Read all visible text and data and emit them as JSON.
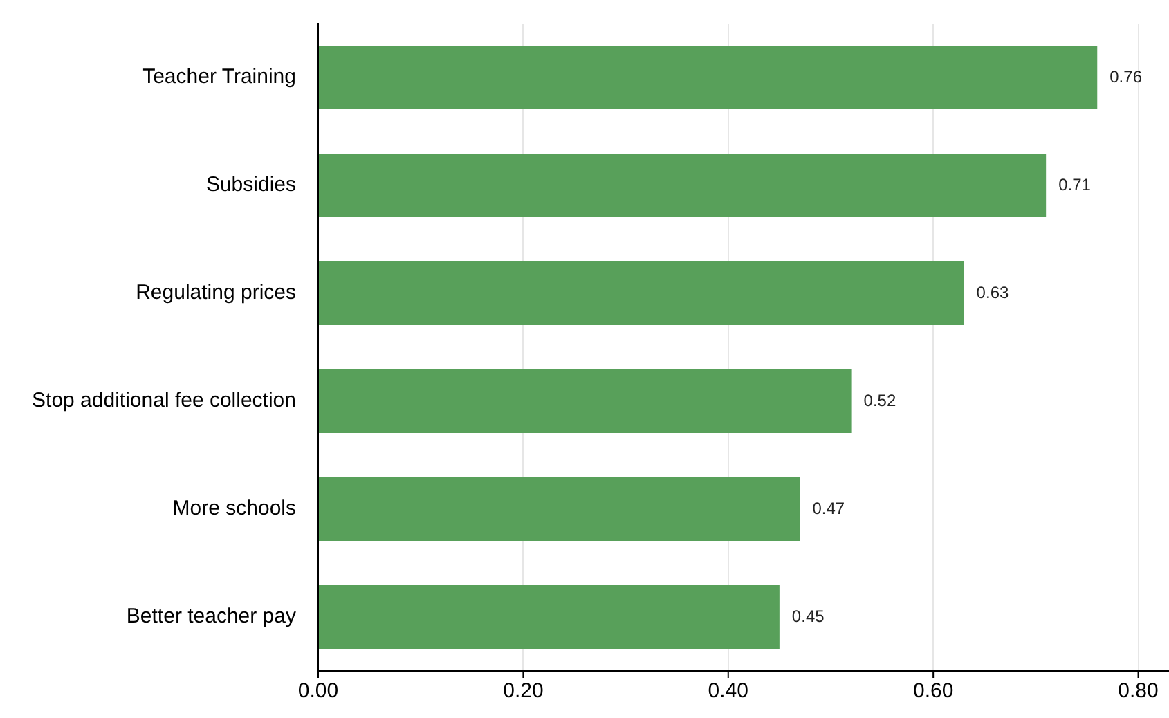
{
  "chart_data": {
    "type": "bar",
    "orientation": "horizontal",
    "categories": [
      "Teacher Training",
      "Subsidies",
      "Regulating prices",
      "Stop additional fee collection",
      "More schools",
      "Better teacher pay"
    ],
    "values": [
      0.76,
      0.71,
      0.63,
      0.52,
      0.47,
      0.45
    ],
    "color": "#58a05a",
    "xlim": [
      0,
      0.83
    ],
    "xticks": [
      {
        "value": 0,
        "label": "0.00"
      },
      {
        "value": 0.2,
        "label": "0.20"
      },
      {
        "value": 0.4,
        "label": "0.40"
      },
      {
        "value": 0.6,
        "label": "0.60"
      },
      {
        "value": 0.8,
        "label": "0.80"
      }
    ],
    "grid": "x",
    "data_labels": true,
    "legend": false
  }
}
